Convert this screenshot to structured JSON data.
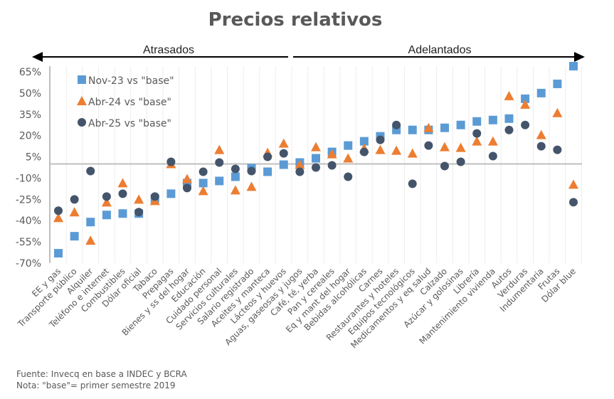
{
  "chart_data": {
    "type": "scatter",
    "title": "Precios relativos",
    "xlabel": "",
    "ylabel": "",
    "ylim": [
      -70,
      65
    ],
    "yticks": [
      65,
      50,
      35,
      20,
      5,
      -10,
      -25,
      -40,
      -55,
      -70
    ],
    "ytick_format": "percent",
    "grid": "vertical",
    "legend_position": "top-left",
    "range_annotations": [
      {
        "label": "Atrasados",
        "direction": "left"
      },
      {
        "label": "Adelantados",
        "direction": "right"
      }
    ],
    "categories": [
      "EE y gas",
      "Transporte público",
      "Alquiler",
      "Teléfono e internet",
      "Combustibles",
      "Dólar oficial",
      "Tabaco",
      "Prepagas",
      "Bienes y ss del hogar",
      "Educación",
      "Cuidado personal",
      "Servicios culturales",
      "Salario registrado",
      "Aceites y manteca",
      "Lácteos y huevos",
      "Aguas, gaseosas y jugos",
      "Café, té, yerba",
      "Pan y cereales",
      "Eq y mant del hogar",
      "Bebidas alcohólicas",
      "Carnes",
      "Restaurantes y hoteles",
      "Equipos tecnológicos",
      "Medicamentos y eq salud",
      "Calzado",
      "Azúcar y golosinas",
      "Librería",
      "Mantenimiento vivienda",
      "Autos",
      "Verduras",
      "Indumentaria",
      "Frutas",
      "Dólar blue"
    ],
    "series": [
      {
        "name": "Nov-23 vs \"base\"",
        "marker": "square",
        "color": "#5B9BD5",
        "values": [
          -63,
          -51,
          -41,
          -36,
          -35,
          -35,
          -24.5,
          -21,
          -13.5,
          -13.5,
          -12,
          -9,
          -3,
          -5.5,
          -0.5,
          1,
          4,
          8.5,
          13,
          16,
          19.5,
          24,
          24,
          24,
          25.5,
          27.5,
          30,
          31,
          32,
          46,
          50,
          56.5,
          69
        ]
      },
      {
        "name": "Abr-24 vs \"base\"",
        "marker": "triangle",
        "color": "#ED7D31",
        "values": [
          -38,
          -34,
          -54,
          -27,
          -13.5,
          -25,
          -26,
          0,
          -10.5,
          -19,
          10,
          -18.5,
          -16,
          8,
          14.5,
          -0.5,
          12,
          7,
          4,
          11,
          10,
          9.5,
          7.5,
          25.5,
          12,
          11.5,
          16,
          16,
          48,
          42,
          20.5,
          36,
          -14.5
        ]
      },
      {
        "name": "Abr-25 vs \"base\"",
        "marker": "circle",
        "color": "#44546A",
        "values": [
          -33,
          -25,
          -5,
          -23,
          -21,
          -34,
          -23,
          1.5,
          -17,
          -5.5,
          1,
          -3.5,
          -5,
          5,
          7.5,
          -5.5,
          -2.5,
          -1,
          -9,
          8.5,
          17,
          27.5,
          -14,
          13,
          -1.5,
          1.5,
          21.5,
          5.5,
          24,
          27.5,
          12.5,
          10,
          -27
        ]
      }
    ]
  },
  "footer": {
    "source": "Fuente: Invecq en base a INDEC y BCRA",
    "note": "Nota: \"base\"= primer semestre 2019"
  }
}
